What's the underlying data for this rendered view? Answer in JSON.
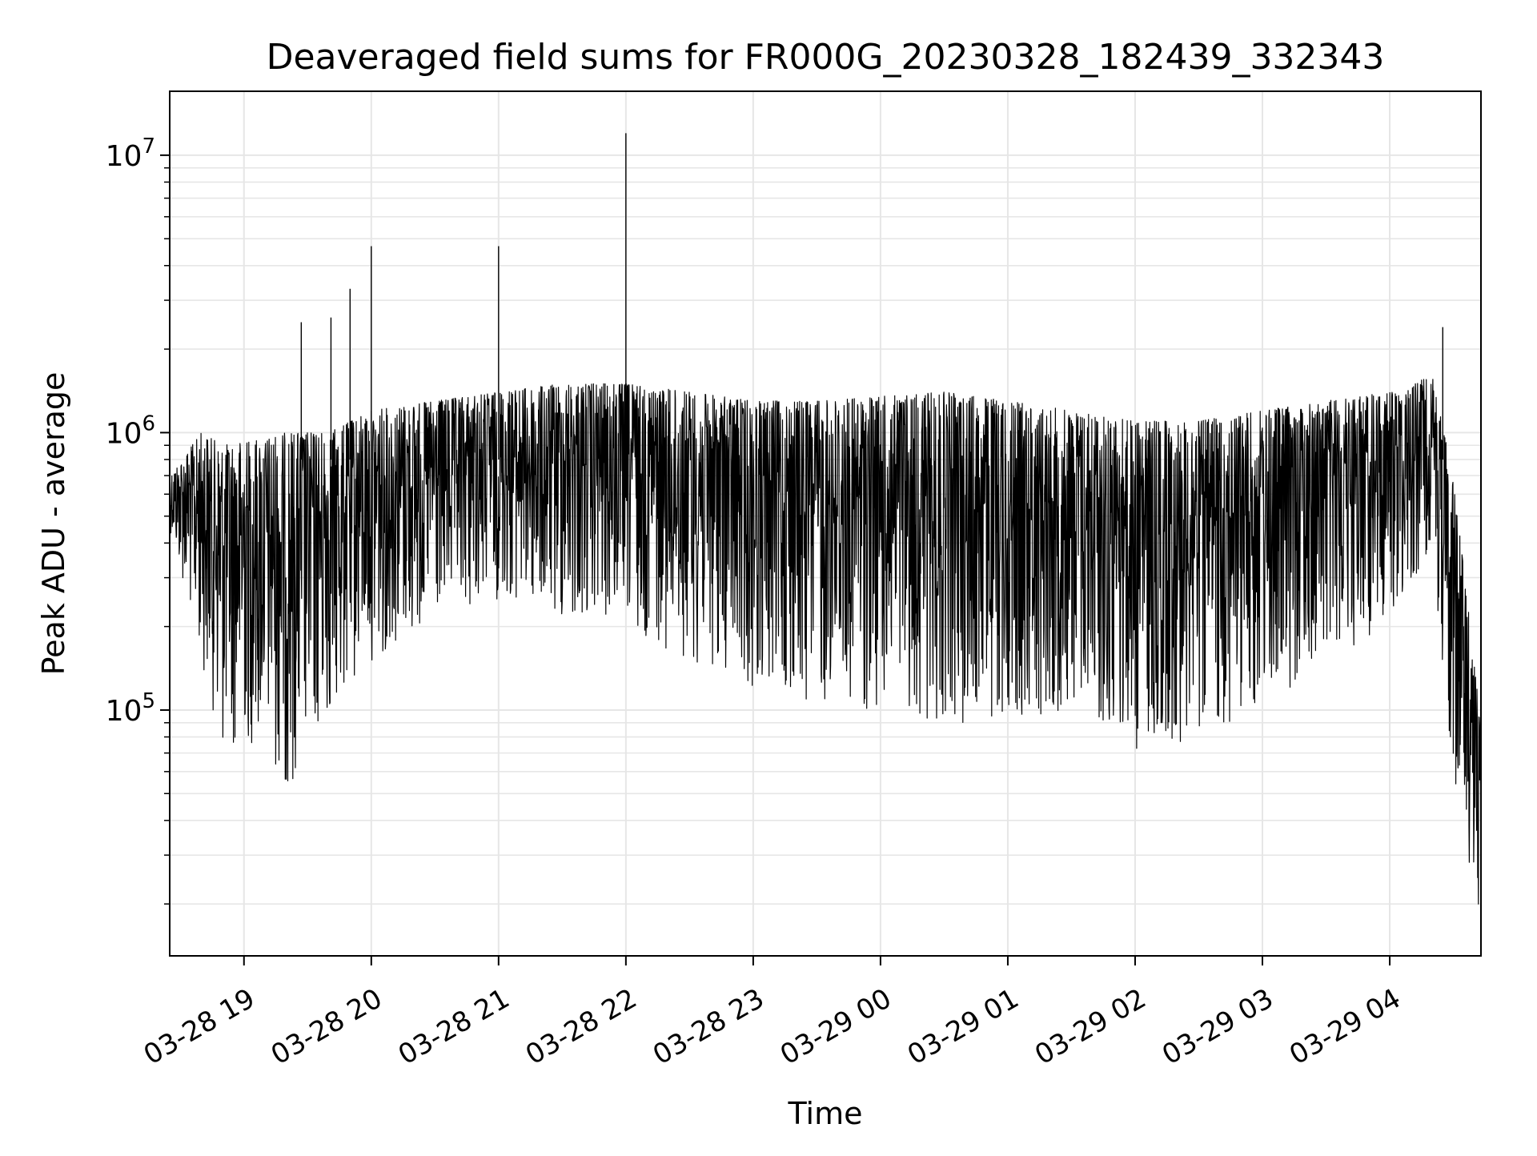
{
  "chart_data": {
    "type": "line",
    "title": "Deaveraged field sums for FR000G_20230328_182439_332343",
    "xlabel": "Time",
    "ylabel": "Peak ADU - average",
    "y_scale": "log",
    "ylim": [
      13000,
      17000000
    ],
    "xlim": [
      "2023-03-28 18:25",
      "2023-03-29 04:43"
    ],
    "x_ticks": [
      {
        "t": "2023-03-28 19:00",
        "label": "03-28 19"
      },
      {
        "t": "2023-03-28 20:00",
        "label": "03-28 20"
      },
      {
        "t": "2023-03-28 21:00",
        "label": "03-28 21"
      },
      {
        "t": "2023-03-28 22:00",
        "label": "03-28 22"
      },
      {
        "t": "2023-03-28 23:00",
        "label": "03-28 23"
      },
      {
        "t": "2023-03-29 00:00",
        "label": "03-29 00"
      },
      {
        "t": "2023-03-29 01:00",
        "label": "03-29 01"
      },
      {
        "t": "2023-03-29 02:00",
        "label": "03-29 02"
      },
      {
        "t": "2023-03-29 03:00",
        "label": "03-29 03"
      },
      {
        "t": "2023-03-29 04:00",
        "label": "03-29 04"
      }
    ],
    "y_ticks": [
      {
        "value": 100000,
        "base": "10",
        "exp": "5"
      },
      {
        "value": 1000000,
        "base": "10",
        "exp": "6"
      },
      {
        "value": 10000000,
        "base": "10",
        "exp": "7"
      }
    ],
    "grid": true,
    "line_color": "#000000",
    "grid_color": "#e6e6e6",
    "series": [
      {
        "points": [
          {
            "t": "2023-03-28 18:25",
            "range": [
              450000,
              700000
            ]
          },
          {
            "t": "2023-03-28 18:40",
            "range": [
              150000,
              1000000
            ]
          },
          {
            "t": "2023-03-28 18:50",
            "range": [
              70000,
              900000
            ]
          },
          {
            "t": "2023-03-28 19:10",
            "range": [
              75000,
              950000
            ]
          },
          {
            "t": "2023-03-28 19:20",
            "range": [
              50000,
              1000000
            ]
          },
          {
            "t": "2023-03-28 19:40",
            "range": [
              90000,
              1000000
            ]
          },
          {
            "t": "2023-03-28 20:00",
            "range": [
              150000,
              1200000
            ]
          },
          {
            "t": "2023-03-28 20:30",
            "range": [
              200000,
              1300000
            ]
          },
          {
            "t": "2023-03-28 21:00",
            "range": [
              250000,
              1400000
            ]
          },
          {
            "t": "2023-03-28 21:30",
            "range": [
              200000,
              1500000
            ]
          },
          {
            "t": "2023-03-28 22:00",
            "range": [
              200000,
              1500000
            ]
          },
          {
            "t": "2023-03-28 22:30",
            "range": [
              150000,
              1400000
            ]
          },
          {
            "t": "2023-03-28 23:00",
            "range": [
              120000,
              1300000
            ]
          },
          {
            "t": "2023-03-28 23:30",
            "range": [
              100000,
              1300000
            ]
          },
          {
            "t": "2023-03-29 00:00",
            "range": [
              100000,
              1350000
            ]
          },
          {
            "t": "2023-03-29 00:30",
            "range": [
              90000,
              1400000
            ]
          },
          {
            "t": "2023-03-29 01:00",
            "range": [
              90000,
              1300000
            ]
          },
          {
            "t": "2023-03-29 01:30",
            "range": [
              100000,
              1200000
            ]
          },
          {
            "t": "2023-03-29 02:00",
            "range": [
              70000,
              1100000
            ]
          },
          {
            "t": "2023-03-29 02:30",
            "range": [
              80000,
              1100000
            ]
          },
          {
            "t": "2023-03-29 03:00",
            "range": [
              100000,
              1200000
            ]
          },
          {
            "t": "2023-03-29 03:30",
            "range": [
              150000,
              1300000
            ]
          },
          {
            "t": "2023-03-29 04:00",
            "range": [
              200000,
              1400000
            ]
          },
          {
            "t": "2023-03-29 04:20",
            "range": [
              400000,
              1600000
            ]
          },
          {
            "t": "2023-03-29 04:30",
            "range": [
              50000,
              700000
            ]
          },
          {
            "t": "2023-03-29 04:43",
            "range": [
              18000,
              90000
            ]
          }
        ],
        "spikes": [
          {
            "t": "2023-03-28 19:27",
            "value": 2500000
          },
          {
            "t": "2023-03-28 19:41",
            "value": 2600000
          },
          {
            "t": "2023-03-28 19:50",
            "value": 3300000
          },
          {
            "t": "2023-03-28 20:00",
            "value": 4700000
          },
          {
            "t": "2023-03-28 21:00",
            "value": 4700000
          },
          {
            "t": "2023-03-28 22:00",
            "value": 12000000
          },
          {
            "t": "2023-03-29 04:25",
            "value": 2400000
          }
        ]
      }
    ]
  }
}
